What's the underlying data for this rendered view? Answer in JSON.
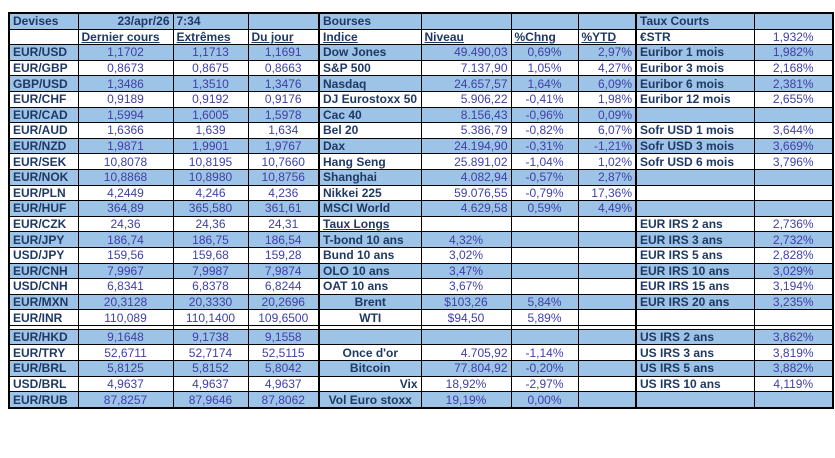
{
  "colors": {
    "row_highlight": "#9DC3E6",
    "label_text": "#1F3864",
    "value_text": "#3F3FA8",
    "border": "#000000",
    "background": "#ffffff"
  },
  "header": {
    "left_section_title": "Devises",
    "date": "23/apr/26",
    "time": "7:34",
    "middle_section_title": "Bourses",
    "right_section_title": "Taux Courts",
    "long_rates_section_title": "Taux Longs"
  },
  "grid": {
    "col_names": [
      "pair-label",
      "last-price",
      "extremes-price",
      "day-price",
      "index-label",
      "level-value",
      "pct-change",
      "pct-ytd",
      "rate-label",
      "rate-value"
    ],
    "column_headers": {
      "devises": [
        "Dernier cours",
        "Extrêmes",
        "Du jour"
      ],
      "bourses": [
        "Indice",
        "Niveau",
        "%Chng",
        "%YTD"
      ]
    },
    "rows": [
      {
        "shade": "blue",
        "type": "data",
        "cells": [
          "Devises",
          {
            "t": "23/apr/26",
            "cls": "lbl r"
          },
          {
            "t": "7:34",
            "cls": "lbl l"
          },
          "",
          "Bourses",
          "",
          "",
          "",
          "Taux Courts",
          ""
        ]
      },
      {
        "shade": "white",
        "type": "data",
        "cells": [
          "",
          {
            "t": "Dernier cours",
            "cls": "lbl l u"
          },
          {
            "t": "Extrêmes",
            "cls": "lbl l u"
          },
          {
            "t": "Du jour",
            "cls": "lbl l u"
          },
          {
            "t": "Indice",
            "cls": "lbl l u"
          },
          {
            "t": "Niveau",
            "cls": "lbl l u"
          },
          {
            "t": "%Chng",
            "cls": "lbl l u"
          },
          {
            "t": "%YTD",
            "cls": "lbl l u"
          },
          "€STR",
          "1,932%"
        ]
      },
      {
        "shade": "blue",
        "type": "data",
        "cells": [
          "EUR/USD",
          "1,1702",
          "1,1713",
          "1,1691",
          "Dow Jones",
          "49.490,03",
          "0,69%",
          "2,97%",
          "Euribor 1 mois",
          "1,982%"
        ]
      },
      {
        "shade": "white",
        "type": "data",
        "cells": [
          "EUR/GBP",
          "0,8673",
          "0,8675",
          "0,8663",
          "S&P 500",
          "7.137,90",
          "1,05%",
          "4,27%",
          "Euribor 3 mois",
          "2,168%"
        ]
      },
      {
        "shade": "blue",
        "type": "data",
        "cells": [
          "GBP/USD",
          "1,3486",
          "1,3510",
          "1,3476",
          "Nasdaq",
          "24.657,57",
          "1,64%",
          "6,09%",
          "Euribor 6 mois",
          "2,381%"
        ]
      },
      {
        "shade": "white",
        "type": "data",
        "cells": [
          "EUR/CHF",
          "0,9189",
          "0,9192",
          "0,9176",
          "DJ Eurostoxx 50",
          "5.906,22",
          "-0,41%",
          "1,98%",
          "Euribor 12 mois",
          "2,655%"
        ]
      },
      {
        "shade": "blue",
        "type": "data",
        "cells": [
          "EUR/CAD",
          "1,5994",
          "1,6005",
          "1,5978",
          "Cac 40",
          "8.156,43",
          "-0,96%",
          "0,09%",
          "",
          ""
        ]
      },
      {
        "shade": "white",
        "type": "data",
        "cells": [
          "EUR/AUD",
          "1,6366",
          "1,639",
          "1,634",
          "Bel 20",
          "5.386,79",
          "-0,82%",
          "6,07%",
          "Sofr USD 1 mois",
          "3,644%"
        ]
      },
      {
        "shade": "blue",
        "type": "data",
        "cells": [
          "EUR/NZD",
          "1,9871",
          "1,9901",
          "1,9767",
          "Dax",
          "24.194,90",
          "-0,31%",
          "-1,21%",
          "Sofr USD 3 mois",
          "3,669%"
        ]
      },
      {
        "shade": "white",
        "type": "data",
        "cells": [
          "EUR/SEK",
          "10,8078",
          "10,8195",
          "10,7660",
          "Hang Seng",
          "25.891,02",
          "-1,04%",
          "1,02%",
          "Sofr USD 6 mois",
          "3,796%"
        ]
      },
      {
        "shade": "blue",
        "type": "data",
        "cells": [
          "EUR/NOK",
          "10,8868",
          "10,8980",
          "10,8756",
          "Shanghai",
          "4.082,94",
          "-0,57%",
          "2,87%",
          "",
          ""
        ]
      },
      {
        "shade": "white",
        "type": "data",
        "cells": [
          "EUR/PLN",
          "4,2449",
          "4,246",
          "4,236",
          "Nikkei 225",
          "59.076,55",
          "-0,79%",
          "17,36%",
          "",
          ""
        ]
      },
      {
        "shade": "blue",
        "type": "data",
        "cells": [
          "EUR/HUF",
          "364,89",
          "365,580",
          "361,61",
          "MSCI World",
          "4.629,58",
          "0,59%",
          "4,49%",
          "",
          ""
        ]
      },
      {
        "shade": "white",
        "type": "data",
        "cells": [
          "EUR/CZK",
          "24,36",
          "24,36",
          "24,31",
          {
            "t": "Taux Longs",
            "cls": "lbl l u"
          },
          "",
          "",
          "",
          "EUR IRS 2 ans",
          "2,736%"
        ]
      },
      {
        "shade": "blue",
        "type": "data",
        "cells": [
          "EUR/JPY",
          "186,74",
          "186,75",
          "186,54",
          "T-bond 10 ans",
          {
            "t": "4,32%",
            "cls": "val c"
          },
          "",
          "",
          "EUR IRS 3 ans",
          "2,732%"
        ]
      },
      {
        "shade": "white",
        "type": "data",
        "cells": [
          "USD/JPY",
          "159,56",
          "159,68",
          "159,28",
          "Bund 10 ans",
          {
            "t": "3,02%",
            "cls": "val c"
          },
          "",
          "",
          "EUR IRS 5 ans",
          "2,828%"
        ]
      },
      {
        "shade": "blue",
        "type": "data",
        "cells": [
          "EUR/CNH",
          "7,9967",
          "7,9987",
          "7,9874",
          "OLO 10 ans",
          {
            "t": "3,47%",
            "cls": "val c"
          },
          "",
          "",
          "EUR IRS 10 ans",
          "3,029%"
        ]
      },
      {
        "shade": "white",
        "type": "data",
        "cells": [
          "USD/CNH",
          "6,8341",
          "6,8378",
          "6,8244",
          "OAT 10 ans",
          {
            "t": "3,67%",
            "cls": "val c"
          },
          "",
          "",
          "EUR IRS 15 ans",
          "3,194%"
        ]
      },
      {
        "shade": "blue",
        "type": "data",
        "cells": [
          "EUR/MXN",
          "20,3128",
          "20,3330",
          "20,2696",
          {
            "t": "Brent",
            "cls": "lbl c"
          },
          {
            "t": "$103,26",
            "cls": "val c"
          },
          "5,84%",
          "",
          "EUR IRS 20 ans",
          "3,235%"
        ]
      },
      {
        "shade": "white",
        "type": "data",
        "cells": [
          "EUR/INR",
          "110,089",
          "110,1400",
          "109,6500",
          {
            "t": "WTI",
            "cls": "lbl c"
          },
          {
            "t": "$94,50",
            "cls": "val c"
          },
          "5,89%",
          "",
          "",
          ""
        ]
      },
      {
        "shade": "white",
        "type": "spacer",
        "cells": [
          "",
          "",
          "",
          "",
          "",
          "",
          "",
          "",
          "",
          ""
        ]
      },
      {
        "shade": "blue",
        "type": "data",
        "cells": [
          "EUR/HKD",
          "9,1648",
          "9,1738",
          "9,1558",
          "",
          "",
          "",
          "",
          "US IRS 2 ans",
          "3,862%"
        ]
      },
      {
        "shade": "white",
        "type": "data",
        "cells": [
          "EUR/TRY",
          "52,6711",
          "52,7174",
          "52,5115",
          {
            "t": "Once d'or",
            "cls": "lbl c"
          },
          "4.705,92",
          "-1,14%",
          "",
          "US IRS 3 ans",
          "3,819%"
        ]
      },
      {
        "shade": "blue",
        "type": "data",
        "cells": [
          "EUR/BRL",
          "5,8125",
          "5,8152",
          "5,8042",
          {
            "t": "Bitcoin",
            "cls": "lbl c"
          },
          "77.804,92",
          "-0,20%",
          "",
          "US IRS 5 ans",
          "3,882%"
        ]
      },
      {
        "shade": "white",
        "type": "data",
        "cells": [
          "USD/BRL",
          "4,9637",
          "4,9637",
          "4,9637",
          {
            "t": "Vix",
            "cls": "lbl r"
          },
          {
            "t": "18,92%",
            "cls": "val c"
          },
          "-2,97%",
          "",
          "US IRS 10 ans",
          "4,119%"
        ]
      },
      {
        "shade": "blue",
        "type": "data",
        "cells": [
          "EUR/RUB",
          "87,8257",
          "87,9646",
          "87,8062",
          {
            "t": "Vol Euro stoxx",
            "cls": "lbl c"
          },
          {
            "t": "19,19%",
            "cls": "val c"
          },
          "0,00%",
          "",
          "",
          ""
        ]
      }
    ]
  }
}
